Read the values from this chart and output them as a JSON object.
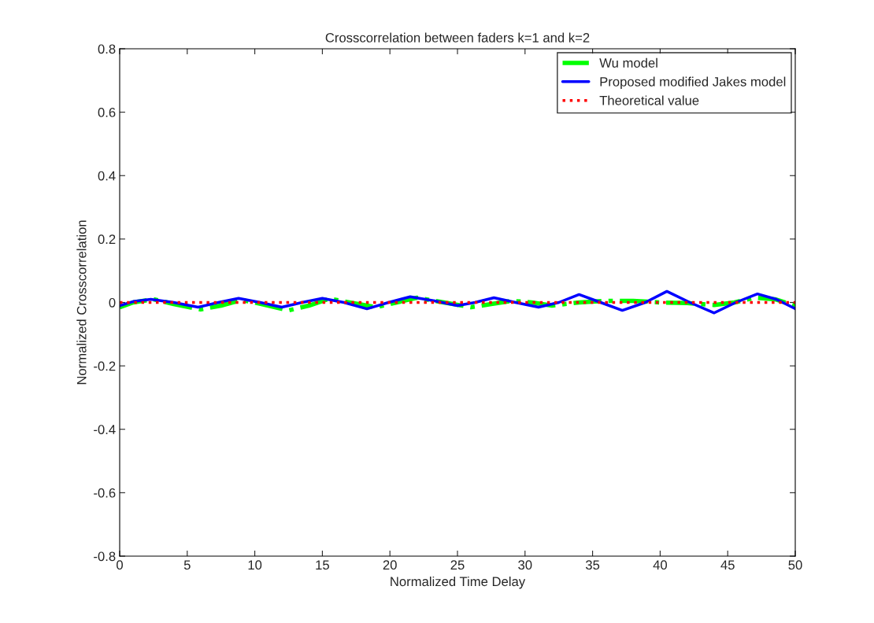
{
  "chart_data": {
    "type": "line",
    "title": "Crosscorrelation between faders k=1 and k=2",
    "xlabel": "Normalized Time Delay",
    "ylabel": "Normalized Crosscorrelation",
    "series": [
      {
        "name": "Wu model",
        "color": "#00ff00",
        "line_style": "dashdot",
        "x": [
          0,
          1,
          2.5,
          4,
          6,
          7.5,
          9,
          10.5,
          12.5,
          14,
          15.5,
          17,
          19,
          20.5,
          22,
          24,
          26,
          27.5,
          29,
          30.5,
          32,
          34,
          36,
          38,
          40,
          42,
          44,
          45.5,
          47,
          48.5,
          50
        ],
        "values": [
          -0.015,
          0.0,
          0.01,
          -0.005,
          -0.022,
          -0.01,
          0.008,
          -0.005,
          -0.025,
          -0.01,
          0.012,
          0.0,
          -0.015,
          0.0,
          0.015,
          0.0,
          -0.015,
          -0.005,
          0.005,
          0.0,
          -0.01,
          0.0,
          0.005,
          0.005,
          0.0,
          -0.002,
          -0.008,
          0.0,
          0.015,
          0.01,
          -0.01
        ]
      },
      {
        "name": "Proposed modified Jakes model",
        "color": "#0000ff",
        "line_style": "solid",
        "x": [
          0,
          1,
          2.3,
          4,
          5.8,
          7.3,
          8.8,
          10.4,
          12,
          13.5,
          15,
          16.6,
          18.3,
          19.9,
          21.5,
          23.3,
          25,
          26.3,
          27.7,
          29.3,
          31,
          32.5,
          34,
          35.6,
          37.2,
          38.9,
          40.5,
          42.2,
          44,
          45.6,
          47.2,
          48.6,
          50
        ],
        "values": [
          -0.01,
          0.003,
          0.01,
          0.0,
          -0.015,
          0.0,
          0.013,
          0.0,
          -0.015,
          0.0,
          0.013,
          0.0,
          -0.02,
          0.0,
          0.018,
          0.005,
          -0.01,
          0.0,
          0.015,
          0.0,
          -0.015,
          0.0,
          0.025,
          0.0,
          -0.025,
          0.0,
          0.035,
          0.0,
          -0.033,
          0.0,
          0.027,
          0.01,
          -0.02
        ]
      },
      {
        "name": "Theoretical value",
        "color": "#ff0000",
        "line_style": "dotted",
        "x": [
          0,
          50
        ],
        "values": [
          0,
          0
        ]
      }
    ],
    "xlim": [
      0,
      50
    ],
    "xticks": [
      0,
      5,
      10,
      15,
      20,
      25,
      30,
      35,
      40,
      45,
      50
    ],
    "ylim": [
      -0.8,
      0.8
    ],
    "yticks": [
      -0.8,
      -0.6,
      -0.4,
      -0.2,
      0,
      0.2,
      0.4,
      0.6,
      0.8
    ],
    "grid": false,
    "legend": "top right"
  }
}
